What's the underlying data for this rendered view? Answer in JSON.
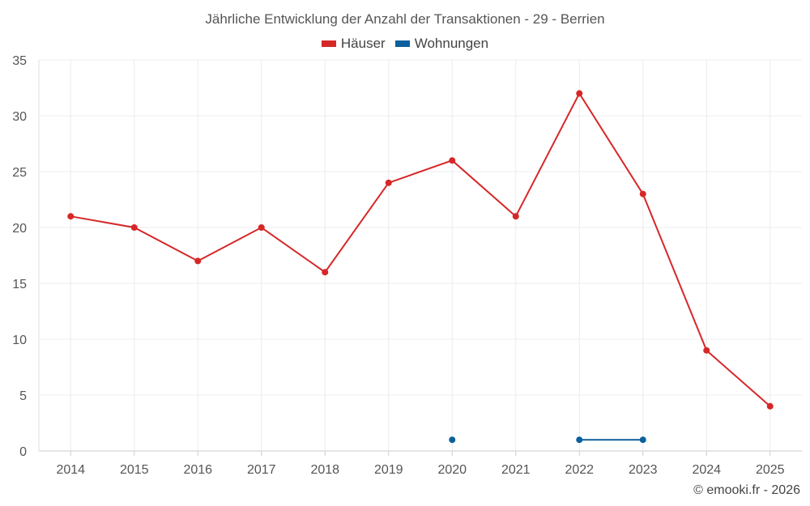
{
  "chart_data": {
    "type": "line",
    "title": "Jährliche Entwicklung der Anzahl der Transaktionen - 29 - Berrien",
    "categories": [
      "2014",
      "2015",
      "2016",
      "2017",
      "2018",
      "2019",
      "2020",
      "2021",
      "2022",
      "2023",
      "2024",
      "2025"
    ],
    "series": [
      {
        "name": "Häuser",
        "color": "#d62728",
        "values": [
          21,
          20,
          17,
          20,
          16,
          24,
          26,
          21,
          32,
          23,
          9,
          4
        ]
      },
      {
        "name": "Wohnungen",
        "color": "#0a5f9e",
        "values": [
          null,
          null,
          null,
          null,
          null,
          null,
          1,
          null,
          1,
          1,
          null,
          null
        ]
      }
    ],
    "ylim": [
      0,
      35
    ],
    "yticks": [
      0,
      5,
      10,
      15,
      20,
      25,
      30,
      35
    ],
    "grid": true,
    "legend_position": "top-center"
  },
  "credit": "© emooki.fr - 2026"
}
